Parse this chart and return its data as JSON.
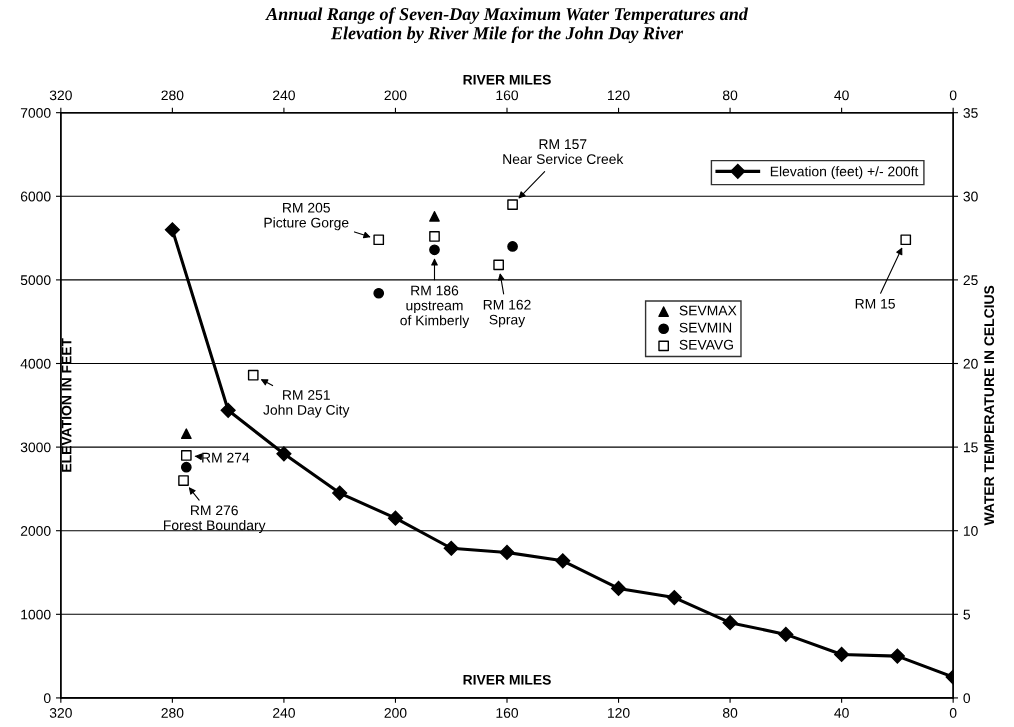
{
  "chart_data": {
    "type": "line",
    "title": "Annual Range of Seven-Day Maximum Water Temperatures and\nElevation by River Mile for the John Day River",
    "xlabel": "RIVER MILES",
    "x2label": "RIVER MILES",
    "ylabel": "ELEVATION IN FEET",
    "y2label": "WATER TEMPERATURE IN CELCIUS",
    "xlim": [
      320,
      0
    ],
    "xticks": [
      320,
      280,
      240,
      200,
      160,
      120,
      80,
      40,
      0
    ],
    "x2lim": [
      320,
      0
    ],
    "x2ticks": [
      320,
      280,
      240,
      200,
      160,
      120,
      80,
      40,
      0
    ],
    "ylim": [
      0,
      7000
    ],
    "yticks": [
      0,
      1000,
      2000,
      3000,
      4000,
      5000,
      6000,
      7000
    ],
    "y2lim": [
      0,
      35
    ],
    "y2ticks": [
      0,
      5,
      10,
      15,
      20,
      25,
      30,
      35
    ],
    "grid": "y",
    "legend": "top right",
    "series": [
      {
        "name": "Elevation (feet) +/- 200ft",
        "axis": "y",
        "color": "#000000",
        "marker": "diamond",
        "line_style": "solid",
        "x": [
          280,
          260,
          240,
          220,
          200,
          180,
          160,
          140,
          120,
          100,
          80,
          60,
          40,
          20,
          0
        ],
        "values": [
          5600,
          3440,
          2920,
          2450,
          2150,
          1790,
          1740,
          1640,
          1310,
          1200,
          900,
          760,
          520,
          500,
          250
        ]
      },
      {
        "name": "SEVMAX",
        "type": "scatter",
        "axis": "y2",
        "color": "#000000",
        "marker": "triangle",
        "x": [
          275,
          186
        ],
        "values": [
          15.8,
          28.8
        ]
      },
      {
        "name": "SEVMIN",
        "type": "scatter",
        "axis": "y2",
        "color": "#000000",
        "marker": "circle",
        "x": [
          275,
          206,
          186,
          158
        ],
        "values": [
          13.8,
          24.2,
          26.8,
          27.0
        ]
      },
      {
        "name": "SEVAVG",
        "type": "scatter",
        "axis": "y2",
        "color": "#000000",
        "marker": "square",
        "x": [
          276,
          275,
          251,
          206,
          186,
          163,
          158,
          17
        ],
        "values": [
          13.0,
          14.5,
          19.3,
          27.4,
          27.6,
          25.9,
          29.5,
          27.4
        ]
      }
    ],
    "annotations": [
      "RM 157\nNear Service Creek",
      "RM 205\nPicture Gorge",
      "RM 186\nupstream\nof Kimberly",
      "RM 162\nSpray",
      "RM 15",
      "RM 251\nJohn Day City",
      "RM 274",
      "RM 276\nForest Boundary"
    ]
  }
}
